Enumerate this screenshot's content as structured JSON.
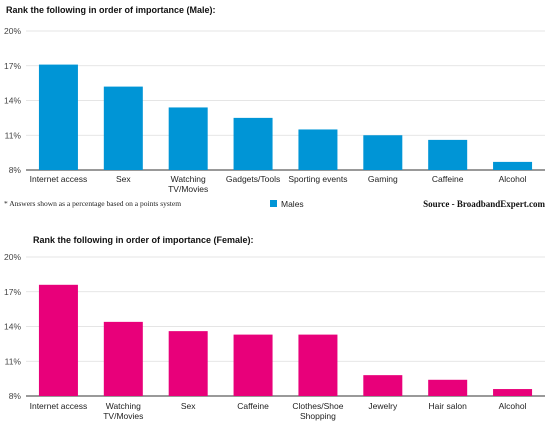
{
  "chart_data": [
    {
      "type": "bar",
      "title": "Rank the following in order of importance (Male):",
      "categories": [
        "Internet access",
        "Sex",
        "Watching\nTV/Movies",
        "Gadgets/Tools",
        "Sporting events",
        "Gaming",
        "Caffeine",
        "Alcohol"
      ],
      "series": [
        {
          "name": "Males",
          "values": [
            17.1,
            15.2,
            13.4,
            12.5,
            11.5,
            11.0,
            10.6,
            8.7
          ]
        }
      ],
      "ylim": [
        8,
        20
      ],
      "yticks": [
        8,
        11,
        14,
        17,
        20
      ],
      "ytick_labels": [
        "8%",
        "11%",
        "14%",
        "17%",
        "20%"
      ],
      "grid": true,
      "color": "#0095d6",
      "legend": "bottom",
      "note": "* Answers shown as a percentage based on a points system",
      "source": "Source - BroadbandExpert.com"
    },
    {
      "type": "bar",
      "title": "Rank the following in order of importance (Female):",
      "categories": [
        "Internet access",
        "Watching\nTV/Movies",
        "Sex",
        "Caffeine",
        "Clothes/Shoe\nShopping",
        "Jewelry",
        "Hair salon",
        "Alcohol"
      ],
      "series": [
        {
          "values": [
            17.6,
            14.4,
            13.6,
            13.3,
            13.3,
            9.8,
            9.4,
            8.6
          ]
        }
      ],
      "ylim": [
        8,
        20
      ],
      "yticks": [
        8,
        11,
        14,
        17,
        20
      ],
      "ytick_labels": [
        "8%",
        "11%",
        "14%",
        "17%",
        "20%"
      ],
      "grid": true,
      "color": "#e8007a"
    }
  ]
}
